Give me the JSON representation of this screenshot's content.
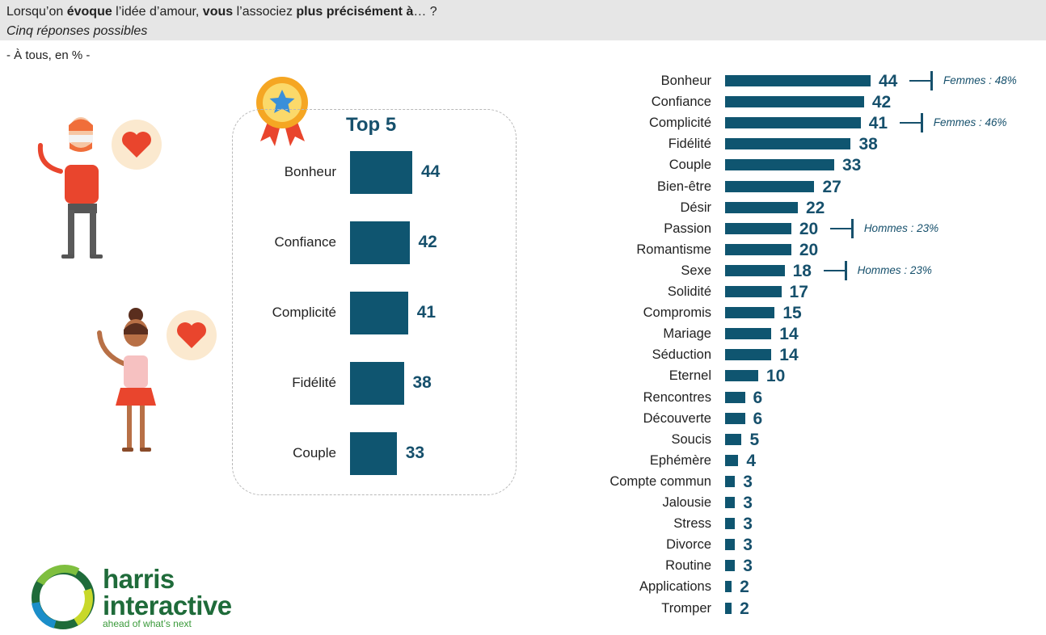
{
  "header": {
    "question_parts": [
      {
        "text": "Lorsqu’on ",
        "bold": false
      },
      {
        "text": "évoque",
        "bold": true
      },
      {
        "text": " l’idée d’amour, ",
        "bold": false
      },
      {
        "text": "vous",
        "bold": true
      },
      {
        "text": " l’associez ",
        "bold": false
      },
      {
        "text": "plus précisément à",
        "bold": true
      },
      {
        "text": "… ?",
        "bold": false
      }
    ],
    "subtitle": "Cinq réponses possibles",
    "base": "- À tous, en % -"
  },
  "top5": {
    "title": "Top 5",
    "items": [
      {
        "label": "Bonheur",
        "value": 44
      },
      {
        "label": "Confiance",
        "value": 42
      },
      {
        "label": "Complicité",
        "value": 41
      },
      {
        "label": "Fidélité",
        "value": 38
      },
      {
        "label": "Couple",
        "value": 33
      }
    ]
  },
  "chart_data": {
    "type": "bar",
    "orientation": "horizontal",
    "categories": [
      "Bonheur",
      "Confiance",
      "Complicité",
      "Fidélité",
      "Couple",
      "Bien-être",
      "Désir",
      "Passion",
      "Romantisme",
      "Sexe",
      "Solidité",
      "Compromis",
      "Mariage",
      "Séduction",
      "Eternel",
      "Rencontres",
      "Découverte",
      "Soucis",
      "Ephémère",
      "Compte commun",
      "Jalousie",
      "Stress",
      "Divorce",
      "Routine",
      "Applications",
      "Tromper"
    ],
    "values": [
      44,
      42,
      41,
      38,
      33,
      27,
      22,
      20,
      20,
      18,
      17,
      15,
      14,
      14,
      10,
      6,
      6,
      5,
      4,
      3,
      3,
      3,
      3,
      3,
      2,
      2
    ],
    "annotations": [
      {
        "category": "Bonheur",
        "text": "Femmes : 48%"
      },
      {
        "category": "Complicité",
        "text": "Femmes : 46%"
      },
      {
        "category": "Passion",
        "text": "Hommes : 23%"
      },
      {
        "category": "Sexe",
        "text": "Hommes : 23%"
      }
    ],
    "colors": {
      "bar": "#0f5570",
      "value_text": "#16506c"
    }
  },
  "logo": {
    "line1": "harris",
    "line2": "interactive",
    "tagline": "ahead of what’s next",
    "colors": {
      "green": "#1f6b3a",
      "light_green": "#3a9a3a"
    }
  },
  "illustrations": [
    "man-figure",
    "woman-figure",
    "heart-bubble-icon",
    "award-medal-icon"
  ]
}
